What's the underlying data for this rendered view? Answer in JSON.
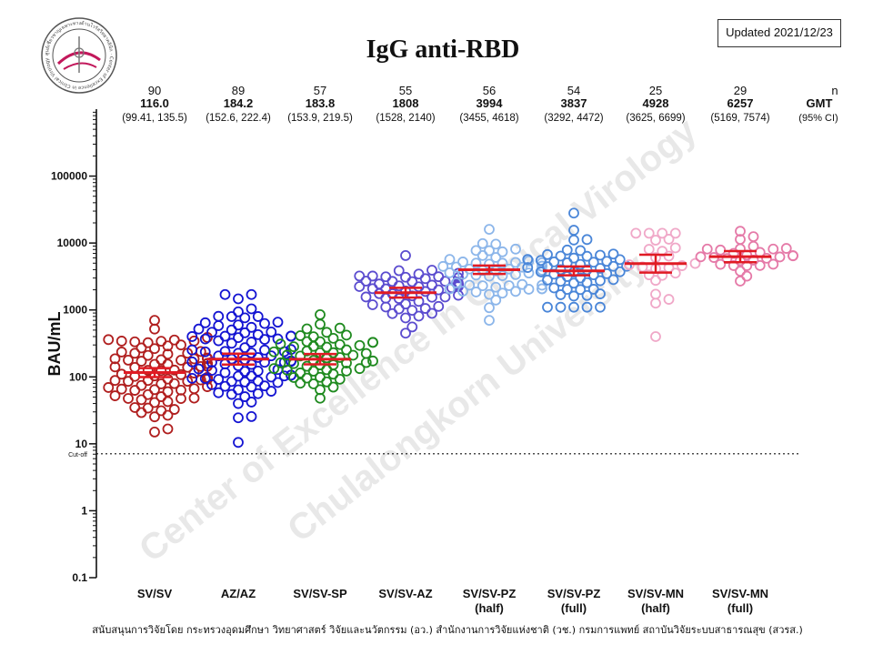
{
  "title": "IgG anti-RBD",
  "updated_badge": "Updated 2021/12/23",
  "logo": {
    "ring_text": "ศูนย์เชี่ยวชาญเฉพาะทางด้านไวรัสวิทยาคลินิก · Center of Excellence in Clinical Virology"
  },
  "watermark": {
    "line1": "Center of Excellence in Clinical Virology",
    "line2": "Chulalongkorn University"
  },
  "footer": "สนับสนุนการวิจัยโดย กระทรวงอุดมศึกษา วิทยาศาสตร์ วิจัยและนวัตกรรม (อว.) สำนักงานการวิจัยแห่งชาติ (วช.) กรมการแพทย์ สถาบันวิจัยระบบสาธารณสุข (สวรส.)",
  "header_labels": {
    "n": "n",
    "gmt": "GMT",
    "ci": "(95% CI)"
  },
  "colors": {
    "SV/SV": "#b01e1e",
    "AZ/AZ": "#1414d2",
    "SV/SV-SP": "#1f8a1f",
    "SV/SV-AZ": "#5b4ccf",
    "SV/SV-PZ (half)": "#8cb6ea",
    "SV/SV-PZ (full)": "#4a86d8",
    "SV/SV-MN (half)": "#f0a8c8",
    "SV/SV-MN (full)": "#e57aa8",
    "gmt_line": "#e01b24"
  },
  "chart_data": {
    "type": "scatter",
    "subtype": "dot-plot-with-gmt-and-95ci",
    "title": "IgG anti-RBD",
    "xlabel": "",
    "ylabel": "BAU/mL",
    "yscale": "log10",
    "ylim": [
      0.1,
      1000000
    ],
    "yticks": [
      0.1,
      1,
      10,
      100,
      1000,
      10000,
      100000
    ],
    "ytick_labels": [
      "0.1",
      "1",
      "10",
      "100",
      "1000",
      "10000",
      "100000"
    ],
    "cutoff": {
      "value": 7.1,
      "label": "Cut-off"
    },
    "groups": [
      {
        "label_line1": "SV/SV",
        "label_line2": "",
        "n": "90",
        "gmt": "116.0",
        "ci_text": "(99.41, 135.5)",
        "gmt_value": 116.0,
        "ci": [
          99.41,
          135.5
        ],
        "min": 15,
        "max": 700
      },
      {
        "label_line1": "AZ/AZ",
        "label_line2": "",
        "n": "89",
        "gmt": "184.2",
        "ci_text": "(152.6, 222.4)",
        "gmt_value": 184.2,
        "ci": [
          152.6,
          222.4
        ],
        "min": 10.5,
        "max": 1700
      },
      {
        "label_line1": "SV/SV-SP",
        "label_line2": "",
        "n": "57",
        "gmt": "183.8",
        "ci_text": "(153.9, 219.5)",
        "gmt_value": 183.8,
        "ci": [
          153.9,
          219.5
        ],
        "min": 48,
        "max": 850
      },
      {
        "label_line1": "SV/SV-AZ",
        "label_line2": "",
        "n": "55",
        "gmt": "1808",
        "ci_text": "(1528, 2140)",
        "gmt_value": 1808,
        "ci": [
          1528,
          2140
        ],
        "min": 450,
        "max": 6500
      },
      {
        "label_line1": "SV/SV-PZ",
        "label_line2": "(half)",
        "n": "56",
        "gmt": "3994",
        "ci_text": "(3455, 4618)",
        "gmt_value": 3994,
        "ci": [
          3455,
          4618
        ],
        "min": 700,
        "max": 16000
      },
      {
        "label_line1": "SV/SV-PZ",
        "label_line2": "(full)",
        "n": "54",
        "gmt": "3837",
        "ci_text": "(3292, 4472)",
        "gmt_value": 3837,
        "ci": [
          3292,
          4472
        ],
        "min": 1100,
        "max": 28000
      },
      {
        "label_line1": "SV/SV-MN",
        "label_line2": "(half)",
        "n": "25",
        "gmt": "4928",
        "ci_text": "(3625, 6699)",
        "gmt_value": 4928,
        "ci": [
          3625,
          6699
        ],
        "min": 400,
        "max": 14000
      },
      {
        "label_line1": "SV/SV-MN",
        "label_line2": "(full)",
        "n": "29",
        "gmt": "6257",
        "ci_text": "(5169, 7574)",
        "gmt_value": 6257,
        "ci": [
          5169,
          7574
        ],
        "min": 2700,
        "max": 15000
      }
    ]
  }
}
